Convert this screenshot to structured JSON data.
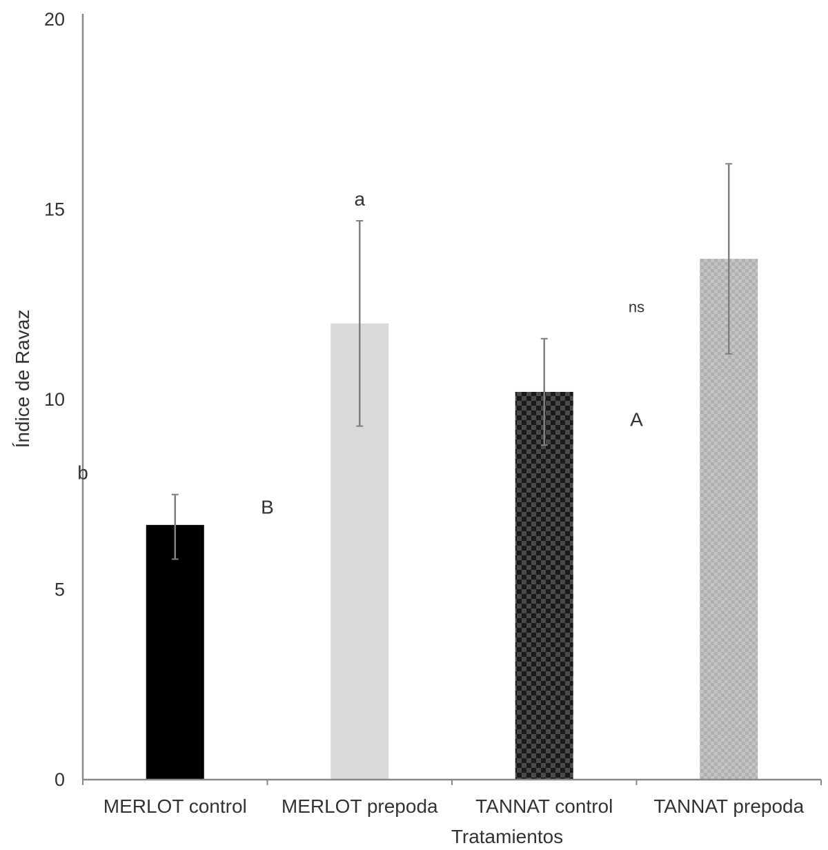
{
  "chart_data": {
    "type": "bar",
    "title": "",
    "xlabel": "Tratamientos",
    "ylabel": "Índice de Ravaz",
    "ylim": [
      0,
      20
    ],
    "yticks": [
      0,
      5,
      10,
      15,
      20
    ],
    "grid": false,
    "legend": "none",
    "categories": [
      "MERLOT control",
      "MERLOT prepoda",
      "TANNAT control",
      "TANNAT prepoda"
    ],
    "values": [
      6.7,
      12.0,
      10.2,
      13.7
    ],
    "error_low": [
      5.8,
      9.3,
      8.8,
      11.2
    ],
    "error_high": [
      7.5,
      14.7,
      11.6,
      16.2
    ],
    "bar_styles": [
      {
        "fill": "#000000",
        "pattern": "solid"
      },
      {
        "fill": "#d9d9d9",
        "pattern": "solid"
      },
      {
        "fill": "#1a1a1a",
        "pattern": "check"
      },
      {
        "fill": "#bdbdbd",
        "pattern": "dots"
      }
    ],
    "annotations": [
      {
        "text": "b",
        "category": 0,
        "offset": -0.5,
        "y": 7.9
      },
      {
        "text": "a",
        "category": 1,
        "offset": 0,
        "y": 15.1
      },
      {
        "text": "B",
        "category": 0,
        "offset": 0.5,
        "y": 7.0
      },
      {
        "text": "ns",
        "category": 2,
        "offset": 0.5,
        "y": 12.3
      },
      {
        "text": "A",
        "category": 2,
        "offset": 0.5,
        "y": 9.3
      }
    ]
  }
}
